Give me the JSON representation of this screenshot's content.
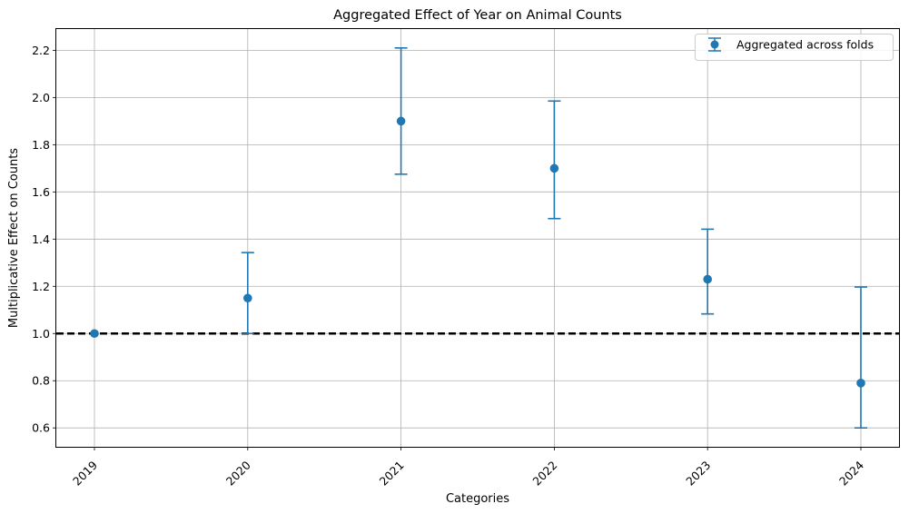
{
  "chart_data": {
    "type": "scatter",
    "title": "Aggregated Effect of Year on Animal Counts",
    "xlabel": "Categories",
    "ylabel": "Multiplicative Effect on Counts",
    "categories": [
      "2019",
      "2020",
      "2021",
      "2022",
      "2023",
      "2024"
    ],
    "series": [
      {
        "name": "Aggregated across folds",
        "values": [
          1.0,
          1.15,
          1.9,
          1.7,
          1.23,
          0.79
        ],
        "error_low": [
          1.0,
          1.0,
          1.675,
          1.487,
          1.083,
          0.6
        ],
        "error_high": [
          1.0,
          1.343,
          2.21,
          1.985,
          1.442,
          1.197
        ]
      }
    ],
    "reference_line": {
      "y": 1.0,
      "style": "dashed",
      "color": "#000000"
    },
    "ylim": [
      0.52,
      2.29
    ],
    "yticks": [
      "0.6",
      "0.8",
      "1.0",
      "1.2",
      "1.4",
      "1.6",
      "1.8",
      "2.0",
      "2.2"
    ],
    "grid": true,
    "legend_position": "top-right",
    "x_tick_rotation": 45,
    "colors": {
      "series": "#1f77b4",
      "grid": "#b0b0b0",
      "reference": "#000000"
    }
  }
}
